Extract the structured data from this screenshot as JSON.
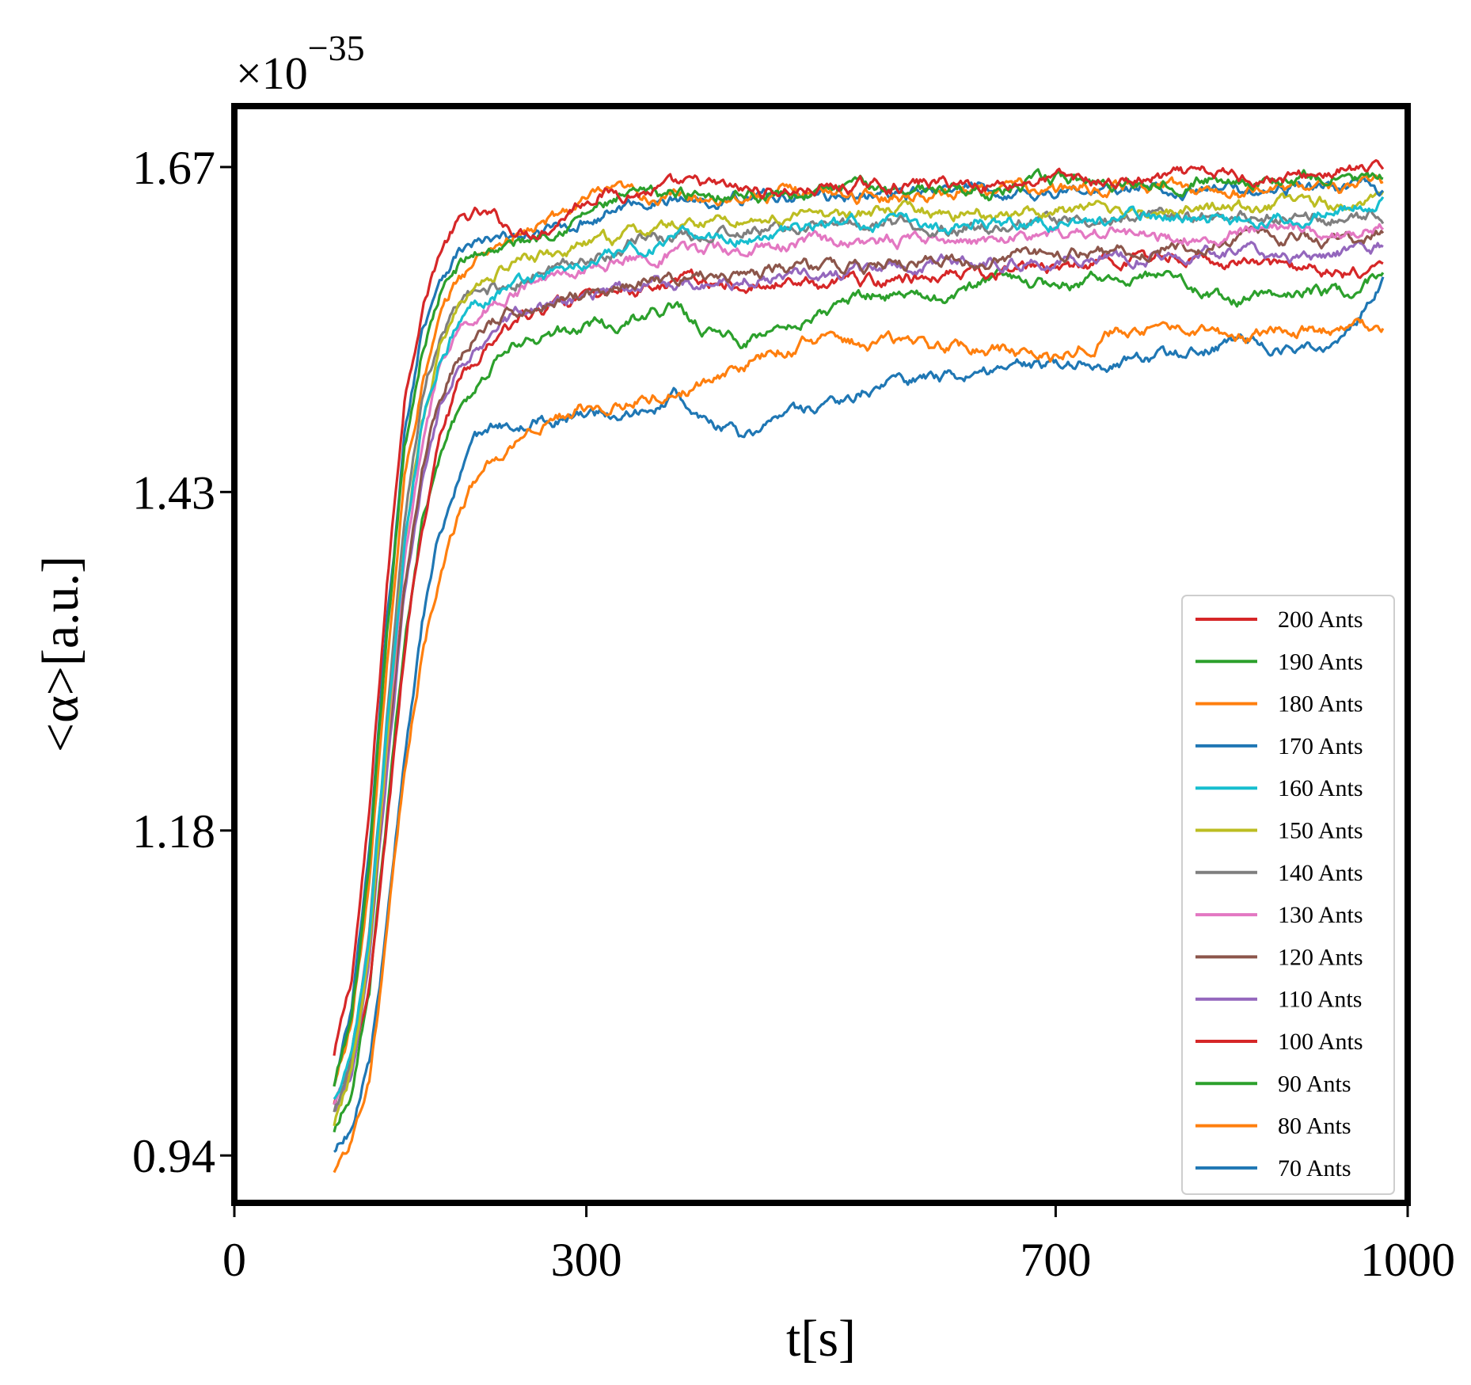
{
  "chart_data": {
    "type": "line",
    "xlabel": "t[s]",
    "ylabel": "<α>[a.u.]",
    "exponent_label": "×10",
    "exponent_power": "−35",
    "xlim": [
      0,
      1000
    ],
    "ylim": [
      0.905,
      1.715
    ],
    "x_ticks": [
      0,
      300,
      700,
      1000
    ],
    "x_tick_labels": [
      "0",
      "300",
      "700",
      "1000"
    ],
    "y_ticks": [
      0.94,
      1.18,
      1.43,
      1.67
    ],
    "y_tick_labels": [
      "0.94",
      "1.18",
      "1.43",
      "1.67"
    ],
    "legend_position": "lower right",
    "grid": false,
    "series": [
      {
        "name": "200 Ants",
        "color": "#d62728",
        "x": [
          85,
          100,
          115,
          130,
          145,
          160,
          175,
          190,
          205,
          220,
          235,
          250,
          270,
          290,
          310,
          330,
          350,
          375,
          400,
          430,
          460,
          500,
          550,
          600,
          650,
          700,
          750,
          800,
          850,
          900,
          950,
          980
        ],
        "y": [
          1.013,
          1.07,
          1.19,
          1.36,
          1.5,
          1.568,
          1.608,
          1.628,
          1.634,
          1.632,
          1.625,
          1.622,
          1.628,
          1.642,
          1.652,
          1.652,
          1.652,
          1.654,
          1.656,
          1.652,
          1.652,
          1.654,
          1.656,
          1.658,
          1.658,
          1.662,
          1.658,
          1.662,
          1.664,
          1.662,
          1.668,
          1.665
        ]
      },
      {
        "name": "190 Ants",
        "color": "#2ca02c",
        "x": [
          85,
          100,
          115,
          130,
          145,
          160,
          175,
          190,
          205,
          220,
          235,
          250,
          270,
          290,
          310,
          330,
          350,
          375,
          400,
          430,
          460,
          500,
          550,
          600,
          650,
          700,
          750,
          800,
          850,
          900,
          950,
          980
        ],
        "y": [
          0.99,
          1.04,
          1.15,
          1.32,
          1.46,
          1.535,
          1.575,
          1.595,
          1.605,
          1.61,
          1.612,
          1.616,
          1.625,
          1.632,
          1.64,
          1.645,
          1.648,
          1.65,
          1.652,
          1.652,
          1.65,
          1.652,
          1.655,
          1.655,
          1.652,
          1.66,
          1.658,
          1.66,
          1.662,
          1.66,
          1.662,
          1.66
        ]
      },
      {
        "name": "180 Ants",
        "color": "#ff7f0e",
        "x": [
          85,
          100,
          115,
          130,
          145,
          160,
          175,
          190,
          205,
          220,
          235,
          250,
          270,
          290,
          310,
          330,
          350,
          375,
          400,
          430,
          460,
          500,
          550,
          600,
          650,
          700,
          750,
          800,
          850,
          900,
          950,
          980
        ],
        "y": [
          0.99,
          1.04,
          1.14,
          1.3,
          1.44,
          1.51,
          1.555,
          1.585,
          1.6,
          1.612,
          1.618,
          1.622,
          1.63,
          1.64,
          1.648,
          1.65,
          1.648,
          1.648,
          1.648,
          1.65,
          1.65,
          1.652,
          1.648,
          1.652,
          1.655,
          1.652,
          1.655,
          1.656,
          1.65,
          1.656,
          1.656,
          1.658
        ]
      },
      {
        "name": "170 Ants",
        "color": "#1f77b4",
        "x": [
          85,
          100,
          115,
          130,
          145,
          160,
          175,
          190,
          205,
          220,
          235,
          250,
          270,
          290,
          310,
          330,
          350,
          375,
          400,
          430,
          460,
          500,
          550,
          600,
          650,
          700,
          750,
          800,
          850,
          900,
          950,
          980
        ],
        "y": [
          0.99,
          1.045,
          1.16,
          1.33,
          1.47,
          1.55,
          1.59,
          1.608,
          1.614,
          1.614,
          1.616,
          1.618,
          1.622,
          1.628,
          1.634,
          1.64,
          1.645,
          1.645,
          1.648,
          1.648,
          1.65,
          1.648,
          1.65,
          1.65,
          1.652,
          1.652,
          1.652,
          1.655,
          1.652,
          1.656,
          1.655,
          1.652
        ]
      },
      {
        "name": "160 Ants",
        "color": "#17becf",
        "x": [
          85,
          100,
          115,
          130,
          145,
          160,
          175,
          190,
          205,
          220,
          235,
          250,
          270,
          290,
          310,
          330,
          350,
          375,
          400,
          430,
          460,
          500,
          550,
          600,
          650,
          700,
          750,
          800,
          850,
          900,
          950,
          980
        ],
        "y": [
          0.98,
          1.02,
          1.1,
          1.25,
          1.39,
          1.48,
          1.53,
          1.555,
          1.57,
          1.578,
          1.584,
          1.588,
          1.592,
          1.596,
          1.6,
          1.606,
          1.61,
          1.615,
          1.62,
          1.618,
          1.622,
          1.626,
          1.63,
          1.626,
          1.632,
          1.628,
          1.632,
          1.634,
          1.63,
          1.635,
          1.638,
          1.645
        ]
      },
      {
        "name": "150 Ants",
        "color": "#bcbd22",
        "x": [
          85,
          100,
          115,
          130,
          145,
          160,
          175,
          190,
          205,
          220,
          235,
          250,
          270,
          290,
          310,
          330,
          350,
          375,
          400,
          430,
          460,
          500,
          550,
          600,
          650,
          700,
          750,
          800,
          850,
          900,
          950,
          980
        ],
        "y": [
          0.96,
          1.0,
          1.09,
          1.24,
          1.39,
          1.48,
          1.535,
          1.565,
          1.58,
          1.59,
          1.598,
          1.602,
          1.606,
          1.61,
          1.614,
          1.618,
          1.622,
          1.626,
          1.63,
          1.632,
          1.632,
          1.634,
          1.636,
          1.636,
          1.636,
          1.638,
          1.638,
          1.64,
          1.638,
          1.642,
          1.642,
          1.646
        ]
      },
      {
        "name": "140 Ants",
        "color": "#7f7f7f",
        "x": [
          85,
          100,
          115,
          130,
          145,
          160,
          175,
          190,
          205,
          220,
          235,
          250,
          270,
          290,
          310,
          330,
          350,
          375,
          400,
          430,
          460,
          500,
          550,
          600,
          650,
          700,
          750,
          800,
          850,
          900,
          950,
          980
        ],
        "y": [
          0.97,
          1.01,
          1.1,
          1.26,
          1.41,
          1.5,
          1.545,
          1.565,
          1.575,
          1.58,
          1.584,
          1.588,
          1.594,
          1.6,
          1.606,
          1.612,
          1.616,
          1.618,
          1.62,
          1.622,
          1.624,
          1.626,
          1.628,
          1.626,
          1.628,
          1.63,
          1.632,
          1.634,
          1.632,
          1.636,
          1.632,
          1.634
        ]
      },
      {
        "name": "130 Ants",
        "color": "#e377c2",
        "x": [
          85,
          100,
          115,
          130,
          145,
          160,
          175,
          190,
          205,
          220,
          235,
          250,
          270,
          290,
          310,
          330,
          350,
          375,
          400,
          430,
          460,
          500,
          550,
          600,
          650,
          700,
          750,
          800,
          850,
          900,
          950,
          980
        ],
        "y": [
          0.975,
          1.01,
          1.1,
          1.24,
          1.38,
          1.47,
          1.52,
          1.545,
          1.56,
          1.57,
          1.576,
          1.582,
          1.588,
          1.594,
          1.598,
          1.602,
          1.604,
          1.606,
          1.608,
          1.61,
          1.612,
          1.614,
          1.616,
          1.618,
          1.616,
          1.62,
          1.622,
          1.618,
          1.622,
          1.626,
          1.622,
          1.628
        ]
      },
      {
        "name": "120 Ants",
        "color": "#8c564b",
        "x": [
          85,
          100,
          115,
          130,
          145,
          160,
          175,
          190,
          205,
          220,
          235,
          250,
          270,
          290,
          310,
          330,
          350,
          375,
          400,
          430,
          460,
          500,
          550,
          600,
          650,
          700,
          750,
          800,
          850,
          900,
          950,
          980
        ],
        "y": [
          0.975,
          1.01,
          1.09,
          1.23,
          1.36,
          1.45,
          1.5,
          1.528,
          1.545,
          1.555,
          1.562,
          1.566,
          1.572,
          1.576,
          1.58,
          1.584,
          1.586,
          1.588,
          1.59,
          1.592,
          1.594,
          1.596,
          1.598,
          1.6,
          1.602,
          1.606,
          1.608,
          1.612,
          1.615,
          1.618,
          1.614,
          1.62
        ]
      },
      {
        "name": "110 Ants",
        "color": "#9467bd",
        "x": [
          85,
          100,
          115,
          130,
          145,
          160,
          175,
          190,
          205,
          220,
          235,
          250,
          270,
          290,
          310,
          330,
          350,
          375,
          400,
          430,
          460,
          500,
          550,
          600,
          650,
          700,
          750,
          800,
          850,
          900,
          950,
          980
        ],
        "y": [
          0.97,
          1.0,
          1.08,
          1.22,
          1.35,
          1.44,
          1.49,
          1.52,
          1.538,
          1.55,
          1.558,
          1.563,
          1.568,
          1.572,
          1.576,
          1.58,
          1.582,
          1.584,
          1.586,
          1.588,
          1.59,
          1.592,
          1.594,
          1.598,
          1.6,
          1.602,
          1.604,
          1.606,
          1.608,
          1.604,
          1.608,
          1.61
        ]
      },
      {
        "name": "100 Ants",
        "color": "#d62728",
        "x": [
          85,
          100,
          115,
          130,
          145,
          160,
          175,
          190,
          205,
          220,
          235,
          250,
          270,
          290,
          310,
          330,
          350,
          375,
          400,
          430,
          460,
          500,
          550,
          600,
          650,
          700,
          750,
          800,
          850,
          900,
          950,
          980
        ],
        "y": [
          0.975,
          1.0,
          1.06,
          1.18,
          1.31,
          1.41,
          1.47,
          1.505,
          1.528,
          1.542,
          1.552,
          1.56,
          1.566,
          1.57,
          1.574,
          1.578,
          1.58,
          1.582,
          1.584,
          1.584,
          1.586,
          1.584,
          1.586,
          1.59,
          1.594,
          1.598,
          1.6,
          1.604,
          1.6,
          1.596,
          1.59,
          1.594
        ]
      },
      {
        "name": "90 Ants",
        "color": "#2ca02c",
        "x": [
          85,
          100,
          115,
          130,
          145,
          160,
          175,
          190,
          205,
          220,
          235,
          250,
          270,
          290,
          310,
          330,
          350,
          375,
          400,
          430,
          460,
          500,
          550,
          600,
          650,
          700,
          750,
          800,
          850,
          900,
          950,
          980
        ],
        "y": [
          0.96,
          0.99,
          1.06,
          1.19,
          1.32,
          1.41,
          1.46,
          1.49,
          1.51,
          1.525,
          1.534,
          1.54,
          1.545,
          1.55,
          1.553,
          1.556,
          1.56,
          1.566,
          1.55,
          1.54,
          1.553,
          1.562,
          1.578,
          1.572,
          1.588,
          1.582,
          1.59,
          1.586,
          1.57,
          1.58,
          1.576,
          1.594
        ]
      },
      {
        "name": "80 Ants",
        "color": "#ff7f0e",
        "x": [
          85,
          100,
          115,
          130,
          145,
          160,
          175,
          190,
          205,
          220,
          235,
          250,
          270,
          290,
          310,
          330,
          350,
          375,
          400,
          430,
          460,
          500,
          550,
          600,
          650,
          700,
          750,
          800,
          850,
          900,
          950,
          980
        ],
        "y": [
          0.93,
          0.95,
          1.0,
          1.1,
          1.22,
          1.31,
          1.37,
          1.41,
          1.438,
          1.455,
          1.466,
          1.475,
          1.484,
          1.49,
          1.496,
          1.498,
          1.5,
          1.505,
          1.51,
          1.52,
          1.535,
          1.543,
          1.54,
          1.536,
          1.535,
          1.53,
          1.548,
          1.552,
          1.545,
          1.55,
          1.55,
          1.554
        ]
      },
      {
        "name": "70 Ants",
        "color": "#1f77b4",
        "x": [
          85,
          100,
          115,
          130,
          145,
          160,
          175,
          190,
          205,
          220,
          235,
          250,
          270,
          290,
          310,
          330,
          350,
          375,
          400,
          430,
          460,
          500,
          550,
          600,
          650,
          700,
          750,
          800,
          850,
          900,
          950,
          980
        ],
        "y": [
          0.945,
          0.96,
          1.01,
          1.11,
          1.23,
          1.33,
          1.4,
          1.44,
          1.463,
          1.475,
          1.48,
          1.482,
          1.484,
          1.486,
          1.488,
          1.49,
          1.49,
          1.5,
          1.484,
          1.47,
          1.478,
          1.494,
          1.51,
          1.514,
          1.522,
          1.524,
          1.526,
          1.53,
          1.54,
          1.536,
          1.548,
          1.586
        ]
      }
    ]
  }
}
